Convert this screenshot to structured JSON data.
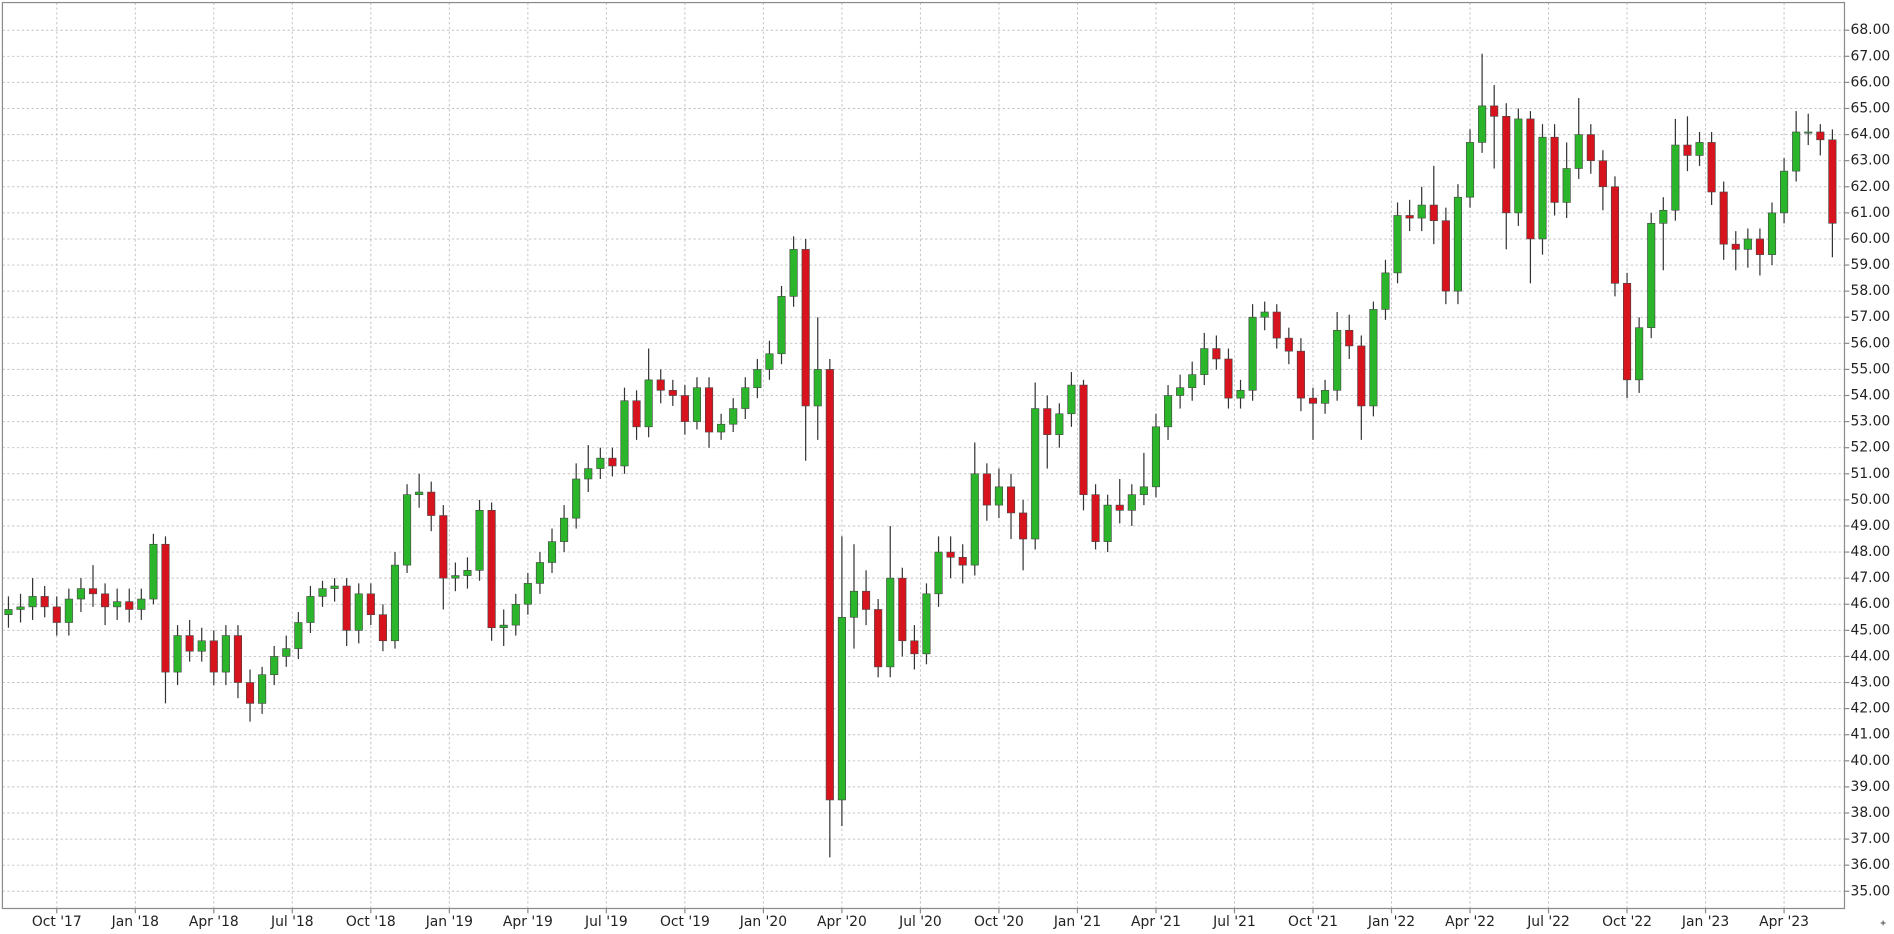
{
  "chart_data": {
    "type": "candlestick",
    "x": [
      1,
      3,
      5,
      7,
      9,
      11,
      13,
      15,
      17,
      19,
      21,
      23,
      25,
      27,
      29,
      31,
      33,
      35,
      37,
      39,
      41,
      43,
      45,
      47,
      49,
      51,
      53,
      55,
      57,
      59,
      61,
      63,
      65,
      67,
      69,
      71,
      73,
      75,
      77,
      79,
      81,
      83,
      85,
      87,
      89,
      91,
      93,
      95,
      97,
      99,
      101,
      103,
      105,
      107,
      109,
      111,
      113,
      115,
      117,
      119,
      121,
      123,
      125,
      127,
      129,
      131,
      133,
      135,
      137,
      139,
      141,
      143,
      145,
      147,
      149,
      151,
      153,
      155,
      157,
      159,
      161,
      163,
      165,
      167,
      169,
      171,
      173,
      175,
      177,
      179,
      181,
      183,
      185,
      187,
      189,
      191,
      193,
      195,
      197,
      199,
      201,
      203,
      205,
      207,
      209,
      211,
      213,
      215,
      217,
      219,
      221,
      223,
      225,
      227,
      229,
      231,
      233,
      235,
      237,
      239,
      241,
      243,
      245,
      247,
      249,
      251,
      253,
      255,
      257,
      259,
      261,
      263,
      265,
      267,
      269,
      271,
      273,
      275,
      277,
      279,
      281,
      283,
      285,
      287,
      289,
      291,
      293,
      295,
      297,
      299,
      301,
      303
    ],
    "open": [
      45.6,
      45.8,
      45.9,
      46.3,
      45.9,
      45.3,
      46.2,
      46.6,
      46.4,
      45.9,
      46.1,
      45.8,
      46.2,
      48.3,
      43.4,
      44.8,
      44.2,
      44.6,
      43.4,
      44.8,
      43.0,
      42.2,
      43.3,
      44.0,
      44.3,
      45.3,
      46.3,
      46.6,
      46.7,
      45.0,
      46.4,
      45.6,
      44.6,
      47.5,
      50.2,
      50.3,
      49.4,
      47.0,
      47.1,
      47.3,
      49.6,
      45.1,
      45.2,
      46.0,
      46.8,
      47.6,
      48.4,
      49.3,
      50.8,
      51.2,
      51.6,
      51.3,
      53.8,
      52.8,
      54.6,
      54.2,
      54.0,
      53.0,
      54.3,
      52.6,
      52.9,
      53.5,
      54.3,
      55.0,
      55.6,
      57.8,
      59.6,
      53.6,
      55.0,
      38.5,
      45.5,
      46.5,
      45.8,
      43.6,
      47.0,
      44.6,
      44.1,
      46.4,
      48.0,
      47.8,
      47.5,
      51.0,
      49.8,
      50.5,
      49.5,
      48.5,
      53.5,
      52.5,
      53.3,
      54.4,
      50.2,
      48.4,
      49.8,
      49.6,
      50.2,
      50.5,
      52.8,
      54.0,
      54.3,
      54.8,
      55.8,
      55.4,
      53.9,
      54.2,
      57.0,
      57.2,
      56.2,
      55.7,
      53.9,
      53.7,
      54.2,
      56.5,
      55.9,
      53.6,
      57.3,
      58.7,
      60.9,
      60.8,
      61.3,
      60.7,
      58.0,
      61.6,
      63.7,
      65.1,
      64.7,
      61.0,
      64.6,
      60.0,
      63.9,
      61.4,
      62.7,
      64.0,
      63.0,
      62.0,
      58.3,
      54.6,
      56.6,
      60.6,
      61.1,
      63.6,
      63.2,
      63.7,
      61.8,
      59.8,
      59.6,
      60.0,
      59.4,
      61.0,
      62.6,
      64.1,
      64.1,
      63.8
    ],
    "high": [
      46.3,
      46.4,
      47.0,
      46.7,
      46.3,
      46.6,
      47.0,
      47.5,
      46.8,
      46.6,
      46.6,
      46.6,
      48.7,
      48.6,
      45.2,
      45.4,
      45.1,
      45.0,
      45.2,
      45.2,
      43.5,
      43.6,
      44.4,
      44.8,
      45.7,
      46.7,
      46.9,
      47.0,
      47.0,
      46.8,
      46.8,
      46.0,
      48.0,
      50.6,
      51.0,
      50.7,
      49.8,
      47.6,
      47.8,
      50.0,
      49.9,
      45.8,
      46.4,
      47.2,
      48.0,
      48.9,
      49.8,
      51.4,
      52.1,
      52.0,
      52.0,
      54.3,
      54.2,
      55.8,
      55.0,
      54.6,
      54.4,
      54.7,
      54.7,
      53.3,
      53.9,
      54.7,
      55.4,
      56.1,
      58.2,
      60.1,
      60.0,
      57.0,
      55.4,
      48.6,
      48.3,
      47.3,
      46.2,
      49.0,
      47.4,
      45.2,
      46.8,
      48.6,
      48.6,
      48.3,
      52.2,
      51.4,
      51.2,
      51.0,
      50.0,
      54.5,
      54.0,
      53.7,
      54.9,
      54.6,
      50.6,
      50.2,
      50.8,
      50.6,
      51.8,
      53.3,
      54.4,
      54.8,
      55.3,
      56.4,
      56.3,
      55.8,
      54.6,
      57.5,
      57.6,
      57.5,
      56.6,
      56.2,
      54.3,
      54.6,
      57.2,
      57.1,
      56.3,
      57.6,
      59.2,
      61.4,
      61.5,
      62.0,
      62.8,
      61.2,
      62.1,
      64.2,
      67.1,
      65.9,
      65.2,
      65.0,
      64.9,
      64.4,
      64.4,
      63.7,
      65.4,
      64.4,
      63.4,
      62.4,
      58.7,
      57.0,
      61.0,
      61.6,
      64.6,
      64.7,
      64.1,
      64.1,
      62.2,
      60.3,
      60.4,
      60.4,
      61.4,
      63.1,
      64.9,
      64.8,
      64.4,
      64.2
    ],
    "low": [
      45.1,
      45.3,
      45.4,
      45.5,
      44.8,
      44.8,
      45.7,
      45.9,
      45.2,
      45.4,
      45.3,
      45.4,
      46.0,
      42.2,
      42.9,
      43.8,
      43.8,
      42.9,
      42.9,
      42.4,
      41.5,
      41.8,
      42.9,
      43.6,
      43.9,
      44.9,
      45.9,
      46.1,
      44.4,
      44.5,
      45.2,
      44.2,
      44.3,
      47.2,
      49.7,
      48.8,
      45.8,
      46.5,
      46.6,
      46.9,
      44.6,
      44.4,
      44.8,
      45.6,
      46.4,
      47.2,
      48.0,
      48.9,
      50.3,
      50.8,
      50.9,
      51.0,
      52.3,
      52.4,
      53.7,
      53.6,
      52.5,
      52.7,
      52.0,
      52.3,
      52.6,
      53.1,
      53.9,
      54.6,
      55.2,
      57.4,
      51.5,
      52.3,
      36.3,
      37.5,
      44.3,
      45.2,
      43.2,
      43.2,
      44.0,
      43.5,
      43.7,
      45.9,
      47.0,
      46.8,
      47.1,
      49.2,
      49.3,
      48.5,
      47.3,
      48.1,
      51.2,
      52.0,
      52.8,
      49.6,
      48.1,
      48.0,
      49.1,
      49.0,
      49.8,
      50.1,
      52.3,
      53.5,
      53.8,
      54.4,
      55.0,
      53.5,
      53.5,
      53.8,
      56.5,
      55.8,
      55.2,
      53.4,
      52.3,
      53.3,
      53.8,
      55.4,
      52.3,
      53.2,
      56.9,
      58.3,
      60.3,
      60.3,
      59.8,
      57.5,
      57.5,
      61.2,
      63.3,
      62.7,
      59.6,
      60.5,
      58.3,
      59.4,
      60.9,
      60.8,
      62.3,
      62.5,
      61.1,
      57.8,
      53.9,
      54.1,
      56.2,
      58.8,
      60.7,
      62.6,
      62.8,
      61.3,
      59.2,
      58.8,
      58.9,
      58.6,
      59.0,
      60.6,
      62.2,
      63.6,
      63.2,
      59.3
    ],
    "close": [
      45.8,
      45.9,
      46.3,
      45.9,
      45.3,
      46.2,
      46.6,
      46.4,
      45.9,
      46.1,
      45.8,
      46.2,
      48.3,
      43.4,
      44.8,
      44.2,
      44.6,
      43.4,
      44.8,
      43.0,
      42.2,
      43.3,
      44.0,
      44.3,
      45.3,
      46.3,
      46.6,
      46.7,
      45.0,
      46.4,
      45.6,
      44.6,
      47.5,
      50.2,
      50.3,
      49.4,
      47.0,
      47.1,
      47.3,
      49.6,
      45.1,
      45.2,
      46.0,
      46.8,
      47.6,
      48.4,
      49.3,
      50.8,
      51.2,
      51.6,
      51.3,
      53.8,
      52.8,
      54.6,
      54.2,
      54.0,
      53.0,
      54.3,
      52.6,
      52.9,
      53.5,
      54.3,
      55.0,
      55.6,
      57.8,
      59.6,
      53.6,
      55.0,
      38.5,
      45.5,
      46.5,
      45.8,
      43.6,
      47.0,
      44.6,
      44.1,
      46.4,
      48.0,
      47.8,
      47.5,
      51.0,
      49.8,
      50.5,
      49.5,
      48.5,
      53.5,
      52.5,
      53.3,
      54.4,
      50.2,
      48.4,
      49.8,
      49.6,
      50.2,
      50.5,
      52.8,
      54.0,
      54.3,
      54.8,
      55.8,
      55.4,
      53.9,
      54.2,
      57.0,
      57.2,
      56.2,
      55.7,
      53.9,
      53.7,
      54.2,
      56.5,
      55.9,
      53.6,
      57.3,
      58.7,
      60.9,
      60.8,
      61.3,
      60.7,
      58.0,
      61.6,
      63.7,
      65.1,
      64.7,
      61.0,
      64.6,
      60.0,
      63.9,
      61.4,
      62.7,
      64.0,
      63.0,
      62.0,
      58.3,
      54.6,
      56.6,
      60.6,
      61.1,
      63.6,
      63.2,
      63.7,
      61.8,
      59.8,
      59.6,
      60.0,
      59.4,
      61.0,
      62.6,
      64.1,
      64.1,
      63.8,
      60.6
    ],
    "up_color": "#2bb52b",
    "down_color": "#d7141e",
    "xlim": [
      0,
      305
    ],
    "xticks": [
      {
        "value": 9,
        "label": "Oct '17"
      },
      {
        "value": 22,
        "label": "Jan '18"
      },
      {
        "value": 35,
        "label": "Apr '18"
      },
      {
        "value": 48,
        "label": "Jul '18"
      },
      {
        "value": 61,
        "label": "Oct '18"
      },
      {
        "value": 74,
        "label": "Jan '19"
      },
      {
        "value": 87,
        "label": "Apr '19"
      },
      {
        "value": 100,
        "label": "Jul '19"
      },
      {
        "value": 113,
        "label": "Oct '19"
      },
      {
        "value": 126,
        "label": "Jan '20"
      },
      {
        "value": 139,
        "label": "Apr '20"
      },
      {
        "value": 152,
        "label": "Jul '20"
      },
      {
        "value": 165,
        "label": "Oct '20"
      },
      {
        "value": 178,
        "label": "Jan '21"
      },
      {
        "value": 191,
        "label": "Apr '21"
      },
      {
        "value": 204,
        "label": "Jul '21"
      },
      {
        "value": 217,
        "label": "Oct '21"
      },
      {
        "value": 230,
        "label": "Jan '22"
      },
      {
        "value": 243,
        "label": "Apr '22"
      },
      {
        "value": 256,
        "label": "Jul '22"
      },
      {
        "value": 269,
        "label": "Oct '22"
      },
      {
        "value": 282,
        "label": "Jan '23"
      },
      {
        "value": 295,
        "label": "Apr '23"
      }
    ],
    "ylim": [
      34.34,
      69.06
    ],
    "yticks": [
      {
        "value": 35,
        "label": "35.00"
      },
      {
        "value": 36,
        "label": "36.00"
      },
      {
        "value": 37,
        "label": "37.00"
      },
      {
        "value": 38,
        "label": "38.00"
      },
      {
        "value": 39,
        "label": "39.00"
      },
      {
        "value": 40,
        "label": "40.00"
      },
      {
        "value": 41,
        "label": "41.00"
      },
      {
        "value": 42,
        "label": "42.00"
      },
      {
        "value": 43,
        "label": "43.00"
      },
      {
        "value": 44,
        "label": "44.00"
      },
      {
        "value": 45,
        "label": "45.00"
      },
      {
        "value": 46,
        "label": "46.00"
      },
      {
        "value": 47,
        "label": "47.00"
      },
      {
        "value": 48,
        "label": "48.00"
      },
      {
        "value": 49,
        "label": "49.00"
      },
      {
        "value": 50,
        "label": "50.00"
      },
      {
        "value": 51,
        "label": "51.00"
      },
      {
        "value": 52,
        "label": "52.00"
      },
      {
        "value": 53,
        "label": "53.00"
      },
      {
        "value": 54,
        "label": "54.00"
      },
      {
        "value": 55,
        "label": "55.00"
      },
      {
        "value": 56,
        "label": "56.00"
      },
      {
        "value": 57,
        "label": "57.00"
      },
      {
        "value": 58,
        "label": "58.00"
      },
      {
        "value": 59,
        "label": "59.00"
      },
      {
        "value": 60,
        "label": "60.00"
      },
      {
        "value": 61,
        "label": "61.00"
      },
      {
        "value": 62,
        "label": "62.00"
      },
      {
        "value": 63,
        "label": "63.00"
      },
      {
        "value": 64,
        "label": "64.00"
      },
      {
        "value": 65,
        "label": "65.00"
      },
      {
        "value": 66,
        "label": "66.00"
      },
      {
        "value": 67,
        "label": "67.00"
      },
      {
        "value": 68,
        "label": "68.00"
      }
    ],
    "grid": true
  }
}
